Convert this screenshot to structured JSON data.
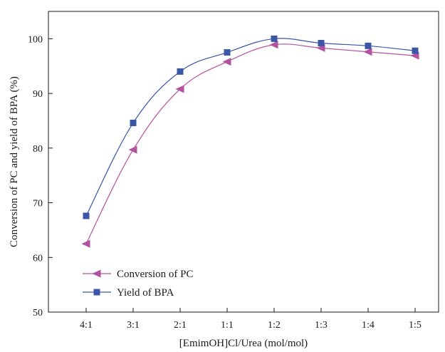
{
  "chart_data": {
    "type": "line",
    "xlabel": "[EmimOH]Cl/Urea (mol/mol)",
    "ylabel": "Conversion of PC and yield of BPA (%)",
    "categories": [
      "4:1",
      "3:1",
      "2:1",
      "1:1",
      "1:2",
      "1:3",
      "1:4",
      "1:5"
    ],
    "ylim": [
      50,
      105
    ],
    "yticks": [
      50,
      60,
      70,
      80,
      90,
      100
    ],
    "grid": false,
    "legend_position": "bottom-left",
    "series": [
      {
        "name": "Conversion of PC",
        "marker": "triangle-left",
        "color": "#b5529f",
        "values": [
          62.5,
          79.7,
          90.8,
          95.8,
          98.9,
          98.3,
          97.6,
          96.9
        ]
      },
      {
        "name": "Yield of BPA",
        "marker": "square",
        "color": "#3a56a5",
        "values": [
          67.6,
          84.6,
          94.0,
          97.5,
          100.0,
          99.2,
          98.7,
          97.8
        ]
      }
    ]
  }
}
